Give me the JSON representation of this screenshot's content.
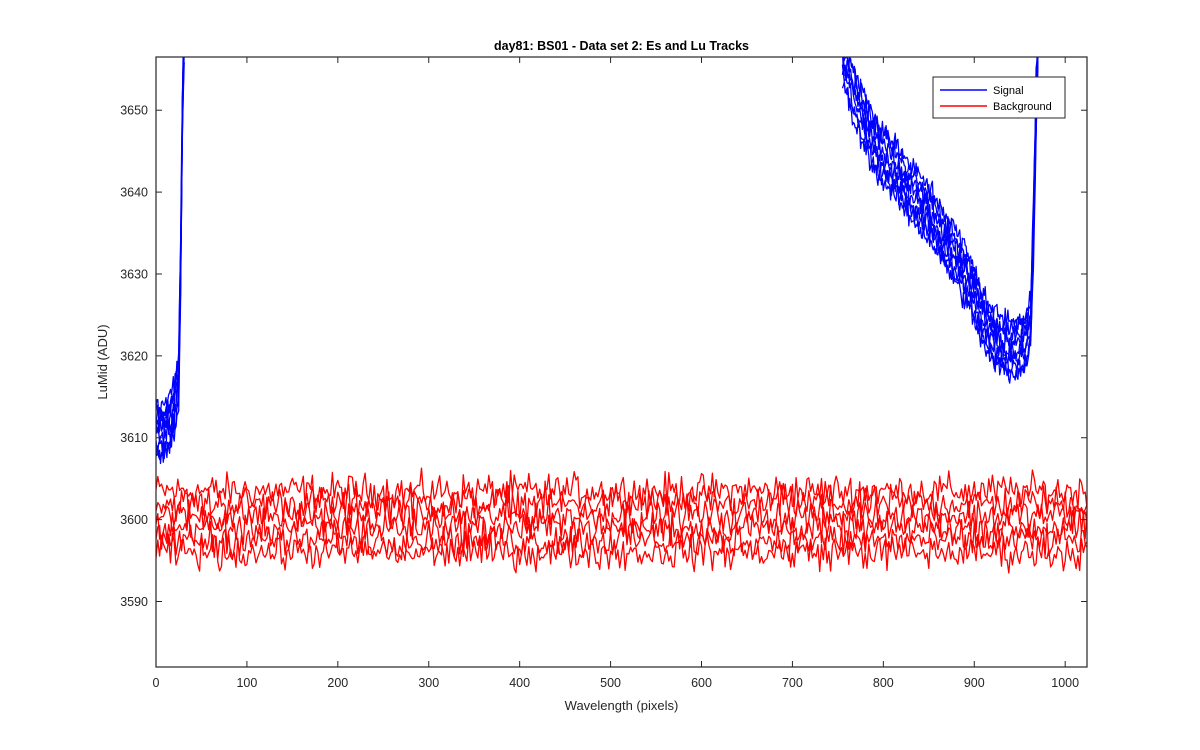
{
  "chart_data": {
    "type": "line",
    "title": "day81: BS01 - Data set 2: Es and Lu Tracks",
    "xlabel": "Wavelength (pixels)",
    "ylabel": "LuMid (ADU)",
    "xlim": [
      0,
      1024
    ],
    "ylim": [
      3582,
      3656.5
    ],
    "xticks": [
      0,
      100,
      200,
      300,
      400,
      500,
      600,
      700,
      800,
      900,
      1000
    ],
    "yticks": [
      3590,
      3600,
      3610,
      3620,
      3630,
      3640,
      3650
    ],
    "grid": false,
    "legend": {
      "placement": "top-right",
      "entries": [
        "Signal",
        "Background"
      ]
    },
    "colors": {
      "Signal": "#0000ff",
      "Background": "#ff0000"
    },
    "series": [
      {
        "name": "Signal",
        "color": "#0000ff",
        "traces": 8,
        "segments": [
          {
            "x": [
              0,
              5,
              10,
              15,
              20,
              25,
              27,
              29,
              31
            ],
            "y": [
              3611,
              3610.5,
              3611,
              3612,
              3613.5,
              3617,
              3630,
              3650,
              3660
            ]
          },
          {
            "x": [
              755,
              770,
              790,
              810,
              830,
              850,
              870,
              890,
              905,
              915,
              925,
              940,
              955,
              962,
              965,
              968,
              970
            ],
            "y": [
              3656.5,
              3651,
              3646,
              3643,
              3640,
              3637.5,
              3634,
              3630,
              3626,
              3623,
              3622,
              3621,
              3621.5,
              3624,
              3635,
              3650,
              3658
            ]
          }
        ]
      },
      {
        "name": "Background",
        "color": "#ff0000",
        "traces": 6,
        "x": [
          0,
          1024
        ],
        "levels": [
          3603.5,
          3602,
          3600.5,
          3599,
          3597.5,
          3596
        ],
        "noise": 1.3
      }
    ]
  }
}
